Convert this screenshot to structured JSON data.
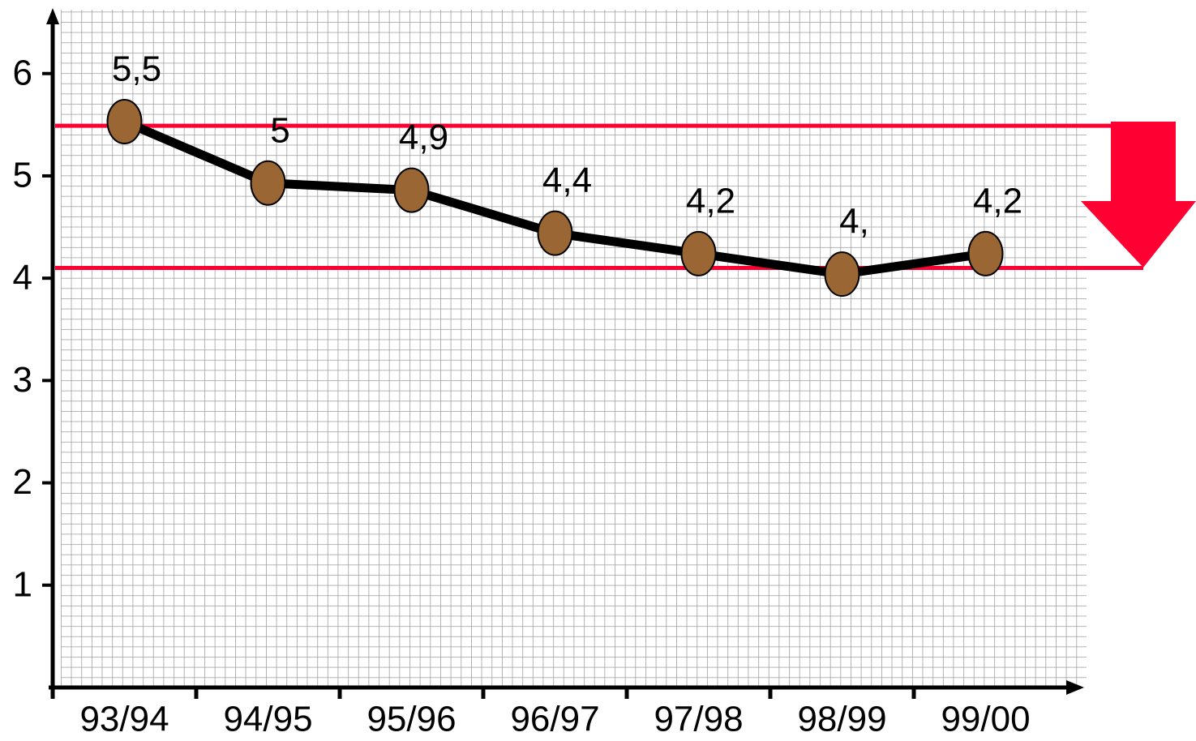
{
  "chart_data": {
    "type": "line",
    "categories": [
      "93/94",
      "94/95",
      "95/96",
      "96/97",
      "97/98",
      "98/99",
      "99/00"
    ],
    "values": [
      5.53,
      4.93,
      4.86,
      4.44,
      4.24,
      4.04,
      4.24
    ],
    "value_labels": [
      "5,5",
      "5",
      "4,9",
      "4,4",
      "4,2",
      "4,",
      "4,2"
    ],
    "color": "#9a6633",
    "ylim": [
      0,
      6.6
    ],
    "yticks": [
      1,
      2,
      3,
      4,
      5,
      6
    ],
    "grid": true,
    "reference_lines": [
      5.49,
      4.1
    ],
    "reference_color": "#ff0033"
  }
}
